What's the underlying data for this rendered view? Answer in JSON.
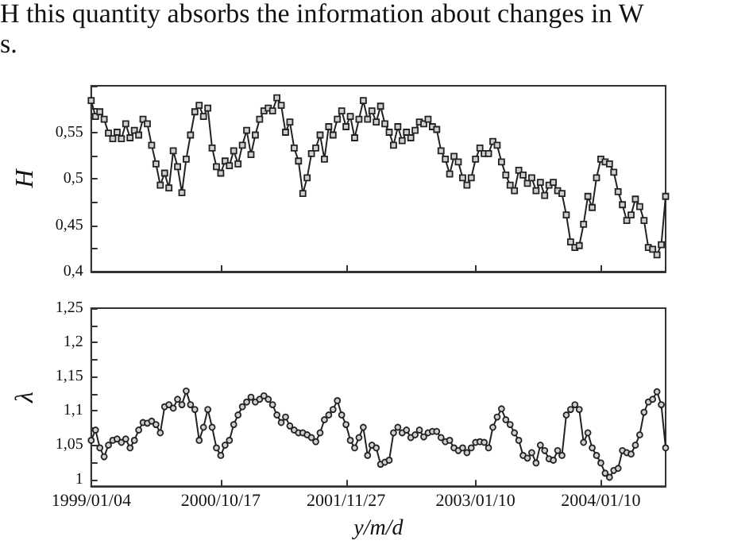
{
  "chart_data": [
    {
      "type": "line",
      "ylabel": "H",
      "tick_labels": "y",
      "marker": "square",
      "line_style": "solid",
      "annotations": [
        "H this quantity absorbs the information about changes in W",
        "s."
      ],
      "categories": [
        "1999/01/04",
        null,
        null,
        null,
        null,
        null,
        null,
        null,
        null,
        null,
        null,
        null,
        null,
        null,
        null,
        null,
        null,
        null,
        null,
        null,
        null,
        null,
        null,
        null,
        null,
        null,
        null,
        null,
        null,
        null,
        "2000/10/17",
        null,
        null,
        null,
        null,
        null,
        null,
        null,
        null,
        null,
        null,
        null,
        null,
        null,
        null,
        null,
        null,
        null,
        null,
        null,
        null,
        null,
        null,
        null,
        null,
        null,
        null,
        null,
        null,
        "2001/11/27",
        null,
        null,
        null,
        null,
        null,
        null,
        null,
        null,
        null,
        null,
        null,
        null,
        null,
        null,
        null,
        null,
        null,
        null,
        null,
        null,
        null,
        null,
        null,
        null,
        null,
        null,
        null,
        null,
        null,
        "2003/01/10",
        null,
        null,
        null,
        null,
        null,
        null,
        null,
        null,
        null,
        null,
        null,
        null,
        null,
        null,
        null,
        null,
        null,
        null,
        null,
        null,
        null,
        null,
        null,
        null,
        null,
        null,
        null,
        null,
        "2004/01/10",
        null,
        null,
        null,
        null,
        null,
        null,
        null,
        null,
        null,
        null,
        null,
        null,
        null,
        null,
        null
      ],
      "ylim": [
        0.4,
        0.6
      ],
      "yticks": [
        {
          "value": 0.4,
          "label": "0,4"
        },
        {
          "value": 0.425,
          "label": null
        },
        {
          "value": 0.45,
          "label": "0,45"
        },
        {
          "value": 0.475,
          "label": null
        },
        {
          "value": 0.5,
          "label": "0,5"
        },
        {
          "value": 0.525,
          "label": null
        },
        {
          "value": 0.55,
          "label": "0,55"
        },
        {
          "value": 0.575,
          "label": null
        },
        {
          "value": 0.6,
          "label": null
        }
      ],
      "series": [
        {
          "color": "#222222",
          "values": [
            0.584,
            0.567,
            0.572,
            0.564,
            0.549,
            0.543,
            0.55,
            0.543,
            0.559,
            0.544,
            0.552,
            0.547,
            0.564,
            0.559,
            0.536,
            0.516,
            0.493,
            0.506,
            0.49,
            0.53,
            0.513,
            0.485,
            0.521,
            0.547,
            0.572,
            0.579,
            0.567,
            0.576,
            0.533,
            0.513,
            0.506,
            0.519,
            0.514,
            0.53,
            0.516,
            0.536,
            0.552,
            0.526,
            0.547,
            0.564,
            0.573,
            0.576,
            0.573,
            0.587,
            0.579,
            0.55,
            0.561,
            0.533,
            0.519,
            0.484,
            0.501,
            0.527,
            0.533,
            0.547,
            0.521,
            0.556,
            0.547,
            0.564,
            0.573,
            0.556,
            0.567,
            0.544,
            0.564,
            0.584,
            0.564,
            0.573,
            0.561,
            0.578,
            0.559,
            0.55,
            0.536,
            0.556,
            0.541,
            0.55,
            0.544,
            0.552,
            0.561,
            0.559,
            0.564,
            0.556,
            0.553,
            0.53,
            0.521,
            0.505,
            0.524,
            0.518,
            0.501,
            0.493,
            0.501,
            0.521,
            0.533,
            0.527,
            0.527,
            0.54,
            0.536,
            0.518,
            0.504,
            0.493,
            0.487,
            0.509,
            0.504,
            0.495,
            0.501,
            0.487,
            0.496,
            0.482,
            0.493,
            0.496,
            0.487,
            0.484,
            0.461,
            0.432,
            0.426,
            0.428,
            0.451,
            0.481,
            0.469,
            0.501,
            0.521,
            0.518,
            0.516,
            0.507,
            0.486,
            0.472,
            0.455,
            0.461,
            0.478,
            0.47,
            0.455,
            0.426,
            0.424,
            0.418,
            0.429,
            0.481
          ]
        }
      ]
    },
    {
      "type": "line",
      "ylabel": "λ",
      "xlabel": "y/m/d",
      "marker": "circle",
      "line_style": "solid",
      "categories": [
        "1999/01/04",
        null,
        null,
        null,
        null,
        null,
        null,
        null,
        null,
        null,
        null,
        null,
        null,
        null,
        null,
        null,
        null,
        null,
        null,
        null,
        null,
        null,
        null,
        null,
        null,
        null,
        null,
        null,
        null,
        null,
        "2000/10/17",
        null,
        null,
        null,
        null,
        null,
        null,
        null,
        null,
        null,
        null,
        null,
        null,
        null,
        null,
        null,
        null,
        null,
        null,
        null,
        null,
        null,
        null,
        null,
        null,
        null,
        null,
        null,
        null,
        "2001/11/27",
        null,
        null,
        null,
        null,
        null,
        null,
        null,
        null,
        null,
        null,
        null,
        null,
        null,
        null,
        null,
        null,
        null,
        null,
        null,
        null,
        null,
        null,
        null,
        null,
        null,
        null,
        null,
        null,
        null,
        "2003/01/10",
        null,
        null,
        null,
        null,
        null,
        null,
        null,
        null,
        null,
        null,
        null,
        null,
        null,
        null,
        null,
        null,
        null,
        null,
        null,
        null,
        null,
        null,
        null,
        null,
        null,
        null,
        null,
        null,
        "2004/01/10",
        null,
        null,
        null,
        null,
        null,
        null,
        null,
        null,
        null,
        null,
        null,
        null,
        null,
        null,
        null
      ],
      "ylim": [
        0.99,
        1.25
      ],
      "yticks": [
        {
          "value": 1,
          "label": "1"
        },
        {
          "value": 1.025,
          "label": null
        },
        {
          "value": 1.05,
          "label": "1,05"
        },
        {
          "value": 1.075,
          "label": null
        },
        {
          "value": 1.1,
          "label": "1,1"
        },
        {
          "value": 1.125,
          "label": null
        },
        {
          "value": 1.15,
          "label": "1,15"
        },
        {
          "value": 1.175,
          "label": null
        },
        {
          "value": 1.2,
          "label": "1,2"
        },
        {
          "value": 1.225,
          "label": null
        },
        {
          "value": 1.25,
          "label": "1,25"
        }
      ],
      "series": [
        {
          "color": "#222222",
          "values": [
            1.057,
            1.072,
            1.046,
            1.033,
            1.05,
            1.057,
            1.059,
            1.054,
            1.059,
            1.046,
            1.057,
            1.072,
            1.083,
            1.082,
            1.085,
            1.08,
            1.068,
            1.106,
            1.109,
            1.104,
            1.117,
            1.109,
            1.129,
            1.109,
            1.102,
            1.057,
            1.076,
            1.102,
            1.076,
            1.046,
            1.035,
            1.05,
            1.057,
            1.08,
            1.094,
            1.106,
            1.113,
            1.12,
            1.113,
            1.117,
            1.122,
            1.117,
            1.109,
            1.094,
            1.083,
            1.091,
            1.078,
            1.072,
            1.068,
            1.068,
            1.065,
            1.061,
            1.055,
            1.068,
            1.087,
            1.094,
            1.102,
            1.115,
            1.094,
            1.08,
            1.057,
            1.046,
            1.061,
            1.076,
            1.035,
            1.05,
            1.046,
            1.022,
            1.025,
            1.028,
            1.068,
            1.076,
            1.068,
            1.072,
            1.061,
            1.065,
            1.072,
            1.062,
            1.068,
            1.07,
            1.07,
            1.061,
            1.055,
            1.057,
            1.046,
            1.042,
            1.046,
            1.039,
            1.046,
            1.054,
            1.055,
            1.054,
            1.046,
            1.076,
            1.091,
            1.103,
            1.087,
            1.08,
            1.068,
            1.057,
            1.035,
            1.031,
            1.039,
            1.024,
            1.05,
            1.042,
            1.03,
            1.028,
            1.042,
            1.035,
            1.094,
            1.102,
            1.109,
            1.102,
            1.054,
            1.068,
            1.046,
            1.035,
            1.024,
            1.009,
            1.003,
            1.013,
            1.016,
            1.042,
            1.039,
            1.037,
            1.05,
            1.065,
            1.098,
            1.113,
            1.117,
            1.128,
            1.109,
            1.046
          ]
        }
      ]
    }
  ]
}
